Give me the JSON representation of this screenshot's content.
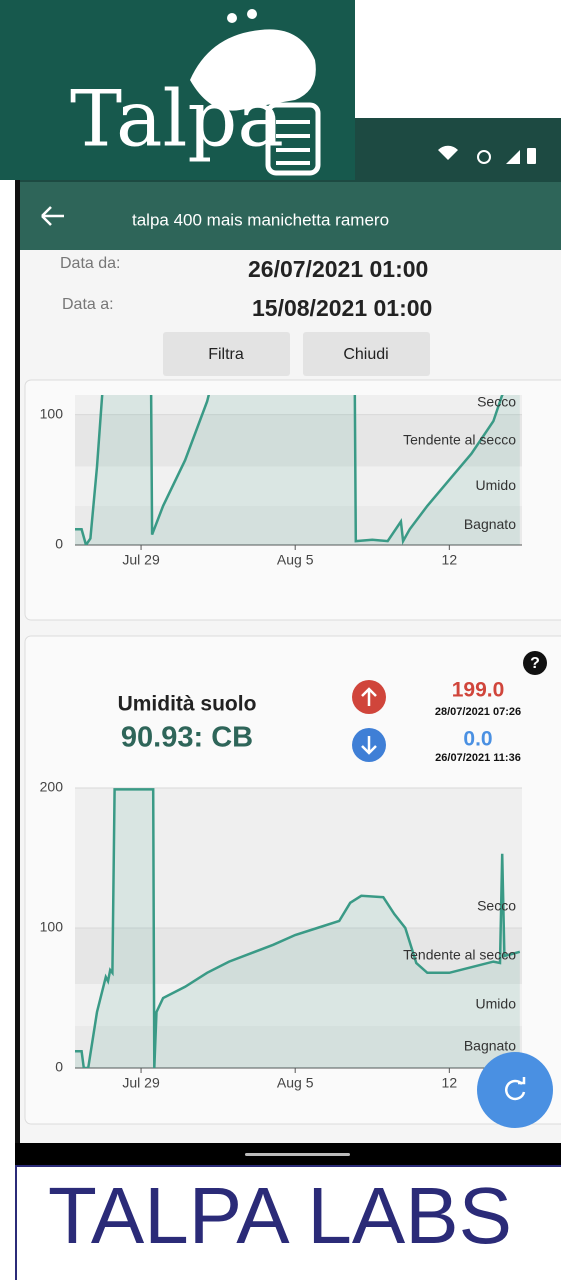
{
  "logo": {
    "text": "Talpa"
  },
  "app_bar": {
    "title": "talpa 400 mais manichetta ramero"
  },
  "filter": {
    "from_label": "Data da:",
    "from_value": "26/07/2021 01:00",
    "to_label": "Data a:",
    "to_value": "15/08/2021 01:00",
    "buttons": [
      "Filtra",
      "Chiudi"
    ]
  },
  "card": {
    "title": "Umidità suolo",
    "value": "90.93: CB",
    "max": {
      "value": "199.0",
      "time": "28/07/2021 07:26"
    },
    "min": {
      "value": "0.0",
      "time": "26/07/2021 11:36"
    }
  },
  "charts": [
    {
      "type": "line",
      "color": "#3a9a86",
      "x": [
        0,
        0.3,
        0.5,
        0.7,
        1.0,
        1.3,
        3.45,
        3.5,
        4.0,
        5.0,
        6.0,
        6.3,
        12.7,
        12.75,
        13.5,
        14.2,
        14.8,
        14.9,
        15.2,
        16,
        17,
        18,
        19,
        19.4,
        20.2
      ],
      "values": [
        12,
        12,
        0,
        5,
        60,
        130,
        130,
        8,
        30,
        65,
        110,
        130,
        130,
        3,
        4,
        3,
        18,
        3,
        12,
        30,
        50,
        70,
        95,
        115,
        130
      ],
      "xlim": [
        0,
        20.3
      ],
      "ylim": [
        0,
        115
      ],
      "yticks": [
        0,
        100
      ],
      "xticks": [
        {
          "value": 3,
          "label": "Jul 29"
        },
        {
          "value": 10,
          "label": "Aug 5"
        },
        {
          "value": 17,
          "label": "12"
        }
      ],
      "zones": [
        {
          "label": "Secco",
          "from": 100,
          "to": 200
        },
        {
          "label": "Tendente al secco",
          "from": 60,
          "to": 100
        },
        {
          "label": "Umido",
          "from": 30,
          "to": 60
        },
        {
          "label": "Bagnato",
          "from": 0,
          "to": 30
        }
      ]
    },
    {
      "type": "line",
      "color": "#3a9a86",
      "x": [
        0,
        0.3,
        0.4,
        0.6,
        1.0,
        1.4,
        1.5,
        1.6,
        1.7,
        1.8,
        3.55,
        3.6,
        3.7,
        4.0,
        5,
        6,
        7,
        8,
        9,
        10,
        11,
        12,
        12.5,
        13,
        14,
        14.5,
        15,
        15.5,
        16,
        17,
        18,
        19,
        19.3,
        19.4,
        19.5,
        20.2
      ],
      "values": [
        12,
        12,
        0,
        0,
        40,
        65,
        62,
        70,
        68,
        199,
        199,
        0,
        40,
        50,
        58,
        68,
        76,
        82,
        88,
        95,
        100,
        105,
        118,
        123,
        122,
        110,
        100,
        75,
        68,
        68,
        72,
        76,
        75,
        153,
        80,
        83
      ],
      "xlim": [
        0,
        20.3
      ],
      "ylim": [
        0,
        200
      ],
      "yticks": [
        0,
        100,
        200
      ],
      "xticks": [
        {
          "value": 3,
          "label": "Jul 29"
        },
        {
          "value": 10,
          "label": "Aug 5"
        },
        {
          "value": 17,
          "label": "12"
        }
      ],
      "zones": [
        {
          "label": "Secco",
          "from": 100,
          "to": 200
        },
        {
          "label": "Tendente al secco",
          "from": 60,
          "to": 100
        },
        {
          "label": "Umido",
          "from": 30,
          "to": 60
        },
        {
          "label": "Bagnato",
          "from": 0,
          "to": 30
        }
      ]
    }
  ],
  "footer": {
    "brand": "TALPA LABS"
  }
}
